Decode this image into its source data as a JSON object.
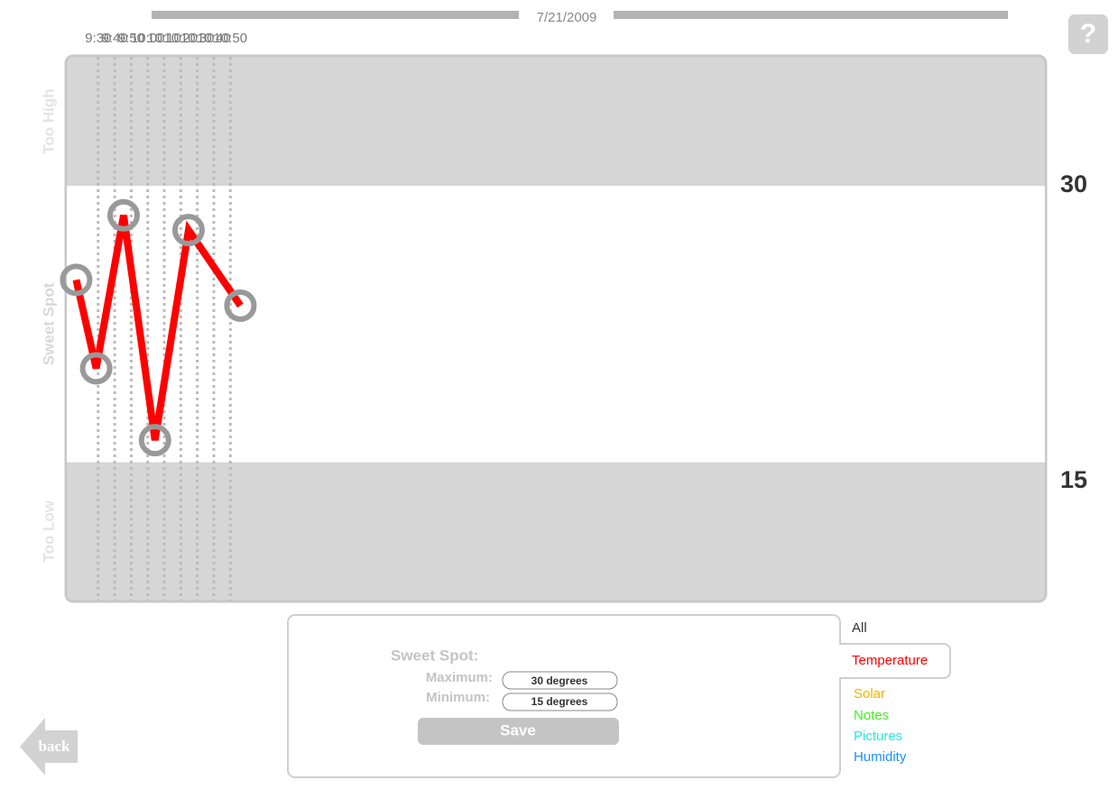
{
  "header": {
    "date": "7/21/2009",
    "help": "?"
  },
  "chart_data": {
    "type": "line",
    "band_labels": [
      "Too High",
      "Sweet Spot",
      "Too Low"
    ],
    "x": [
      556.7,
      568.8,
      585.4,
      604.4,
      624.7,
      656.1
    ],
    "series": [
      {
        "name": "Temperature",
        "color": "#ff0000",
        "values": [
          24.9,
          20.1,
          28.4,
          16.2,
          27.6,
          23.5
        ]
      }
    ],
    "xlim": [
      551,
      1143
    ],
    "xticks": [
      {
        "value": 570,
        "label": "9:30"
      },
      {
        "value": 580,
        "label": "9:40"
      },
      {
        "value": 590,
        "label": "9:50"
      },
      {
        "value": 600,
        "label": "10:00"
      },
      {
        "value": 610,
        "label": "10:10"
      },
      {
        "value": 620,
        "label": "10:20"
      },
      {
        "value": 630,
        "label": "10:30"
      },
      {
        "value": 640,
        "label": "10:40"
      },
      {
        "value": 650,
        "label": "10:50"
      }
    ],
    "ylim": [
      7.5,
      37
    ],
    "yticks": [
      15,
      30
    ]
  },
  "form": {
    "title": "Sweet Spot:",
    "maximum_label": "Maximum:",
    "maximum_value": "30 degrees",
    "minimum_label": "Minimum:",
    "minimum_value": "15 degrees",
    "save": "Save"
  },
  "menu": [
    "All",
    "Temperature",
    "Solar",
    "Notes",
    "Pictures",
    "Humidity"
  ],
  "back": "back"
}
